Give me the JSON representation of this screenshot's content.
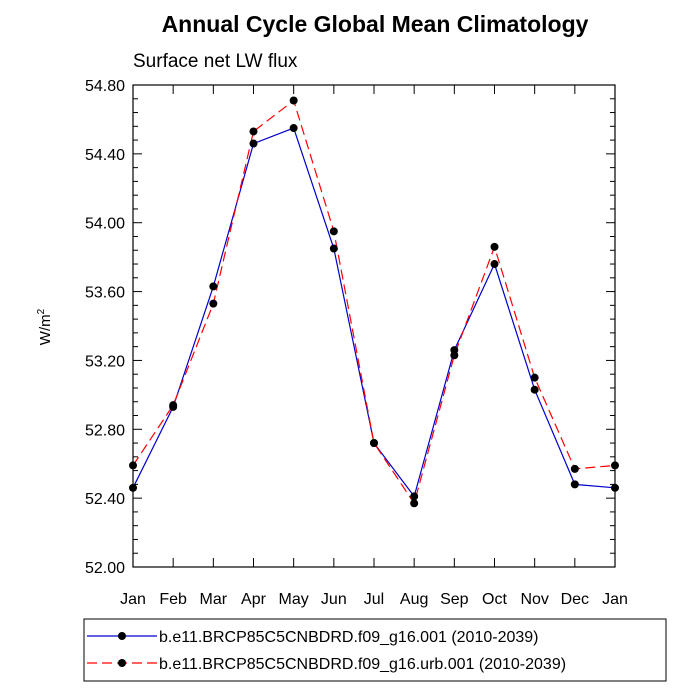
{
  "chart_data": {
    "type": "line",
    "title": "Annual Cycle Global Mean Climatology",
    "subtitle": "Surface net LW flux",
    "ylabel": "W/m",
    "ylabel_sup": "2",
    "xlabel": "",
    "categories": [
      "Jan",
      "Feb",
      "Mar",
      "Apr",
      "May",
      "Jun",
      "Jul",
      "Aug",
      "Sep",
      "Oct",
      "Nov",
      "Dec",
      "Jan"
    ],
    "ylim": [
      52.0,
      54.8
    ],
    "yticks": [
      52.0,
      52.4,
      52.8,
      53.2,
      53.6,
      54.0,
      54.4,
      54.8
    ],
    "ytick_labels": [
      "52.00",
      "52.40",
      "52.80",
      "53.20",
      "53.60",
      "54.00",
      "54.40",
      "54.80"
    ],
    "grid": false,
    "legend_position": "bottom",
    "series": [
      {
        "name": "b.e11.BRCP85C5CNBDRD.f09_g16.001 (2010-2039)",
        "color": "#0000cc",
        "dash": "solid",
        "marker": "filled-circle",
        "values": [
          52.46,
          52.93,
          53.63,
          54.46,
          54.55,
          53.85,
          52.72,
          52.41,
          53.26,
          53.76,
          53.03,
          52.48,
          52.46
        ]
      },
      {
        "name": "b.e11.BRCP85C5CNBDRD.f09_g16.urb.001 (2010-2039)",
        "color": "#ff0000",
        "dash": "dashed",
        "marker": "filled-circle",
        "values": [
          52.59,
          52.94,
          53.53,
          54.53,
          54.71,
          53.95,
          52.72,
          52.37,
          53.23,
          53.86,
          53.1,
          52.57,
          52.59
        ]
      }
    ]
  }
}
